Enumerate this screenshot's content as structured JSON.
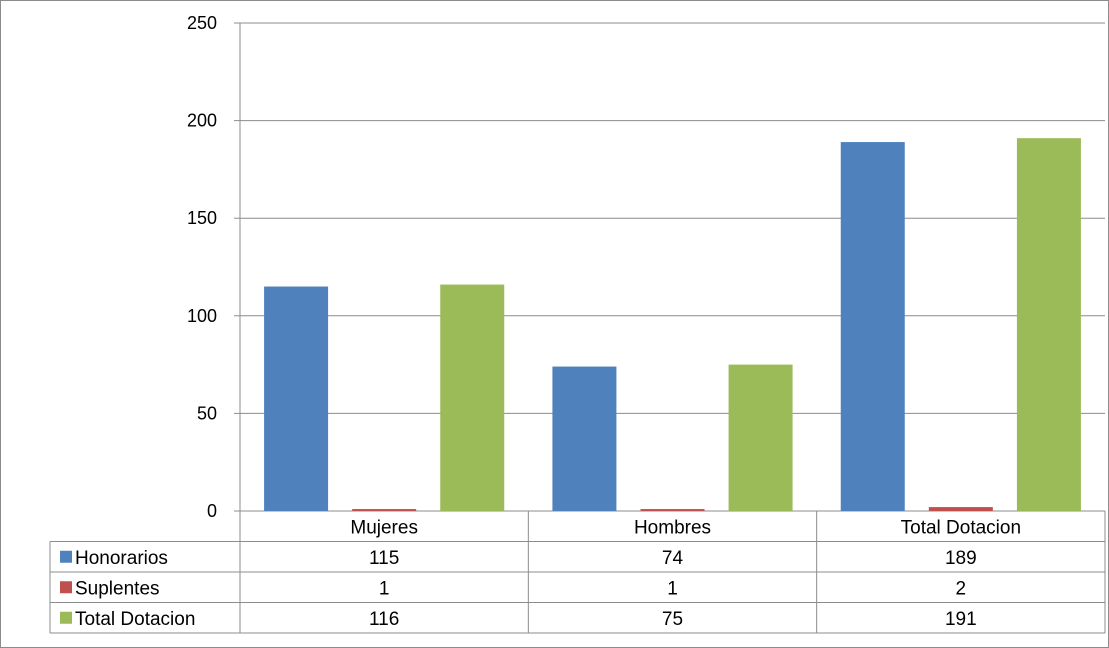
{
  "chart_data": {
    "type": "bar",
    "categories": [
      "Mujeres",
      "Hombres",
      "Total Dotacion"
    ],
    "series": [
      {
        "name": "Honorarios",
        "values": [
          115,
          74,
          189
        ],
        "value_labels": [
          "115",
          "74",
          "189"
        ],
        "color": "#4F81BD"
      },
      {
        "name": "Suplentes",
        "values": [
          1,
          1,
          2
        ],
        "value_labels": [
          "1",
          "1",
          "2"
        ],
        "color": "#C0504D"
      },
      {
        "name": "Total Dotacion",
        "values": [
          116,
          75,
          191
        ],
        "value_labels": [
          "116",
          "75",
          "191"
        ],
        "color": "#9BBB59"
      }
    ],
    "ylim": [
      0,
      250
    ],
    "yticks": [
      0,
      50,
      100,
      150,
      200,
      250
    ],
    "ytick_labels": [
      "0",
      "50",
      "100",
      "150",
      "200",
      "250"
    ],
    "grid": true,
    "legend": "data-table",
    "title": "",
    "xlabel": "",
    "ylabel": ""
  }
}
